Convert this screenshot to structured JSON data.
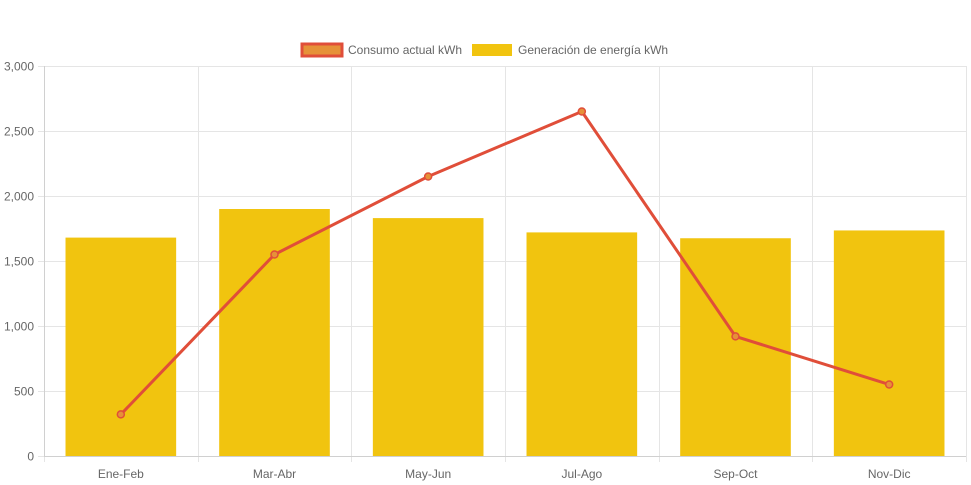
{
  "chart_data": {
    "type": "bar",
    "categories": [
      "Ene-Feb",
      "Mar-Abr",
      "May-Jun",
      "Jul-Ago",
      "Sep-Oct",
      "Nov-Dic"
    ],
    "series": [
      {
        "name": "Consumo actual kWh",
        "type": "line",
        "values": [
          320,
          1550,
          2150,
          2650,
          920,
          550
        ],
        "color": "#e04e39",
        "fill": "#e69138"
      },
      {
        "name": "Generación de energía kWh",
        "type": "bar",
        "values": [
          1680,
          1900,
          1830,
          1720,
          1675,
          1735
        ],
        "color": "#f1c40f"
      }
    ],
    "ylim": [
      0,
      3000
    ],
    "yticks": [
      "0",
      "500",
      "1,000",
      "1,500",
      "2,000",
      "2,500",
      "3,000"
    ],
    "ytick_values": [
      0,
      500,
      1000,
      1500,
      2000,
      2500,
      3000
    ],
    "grid": true,
    "legend_position": "top-center",
    "title": "",
    "xlabel": "",
    "ylabel": ""
  }
}
